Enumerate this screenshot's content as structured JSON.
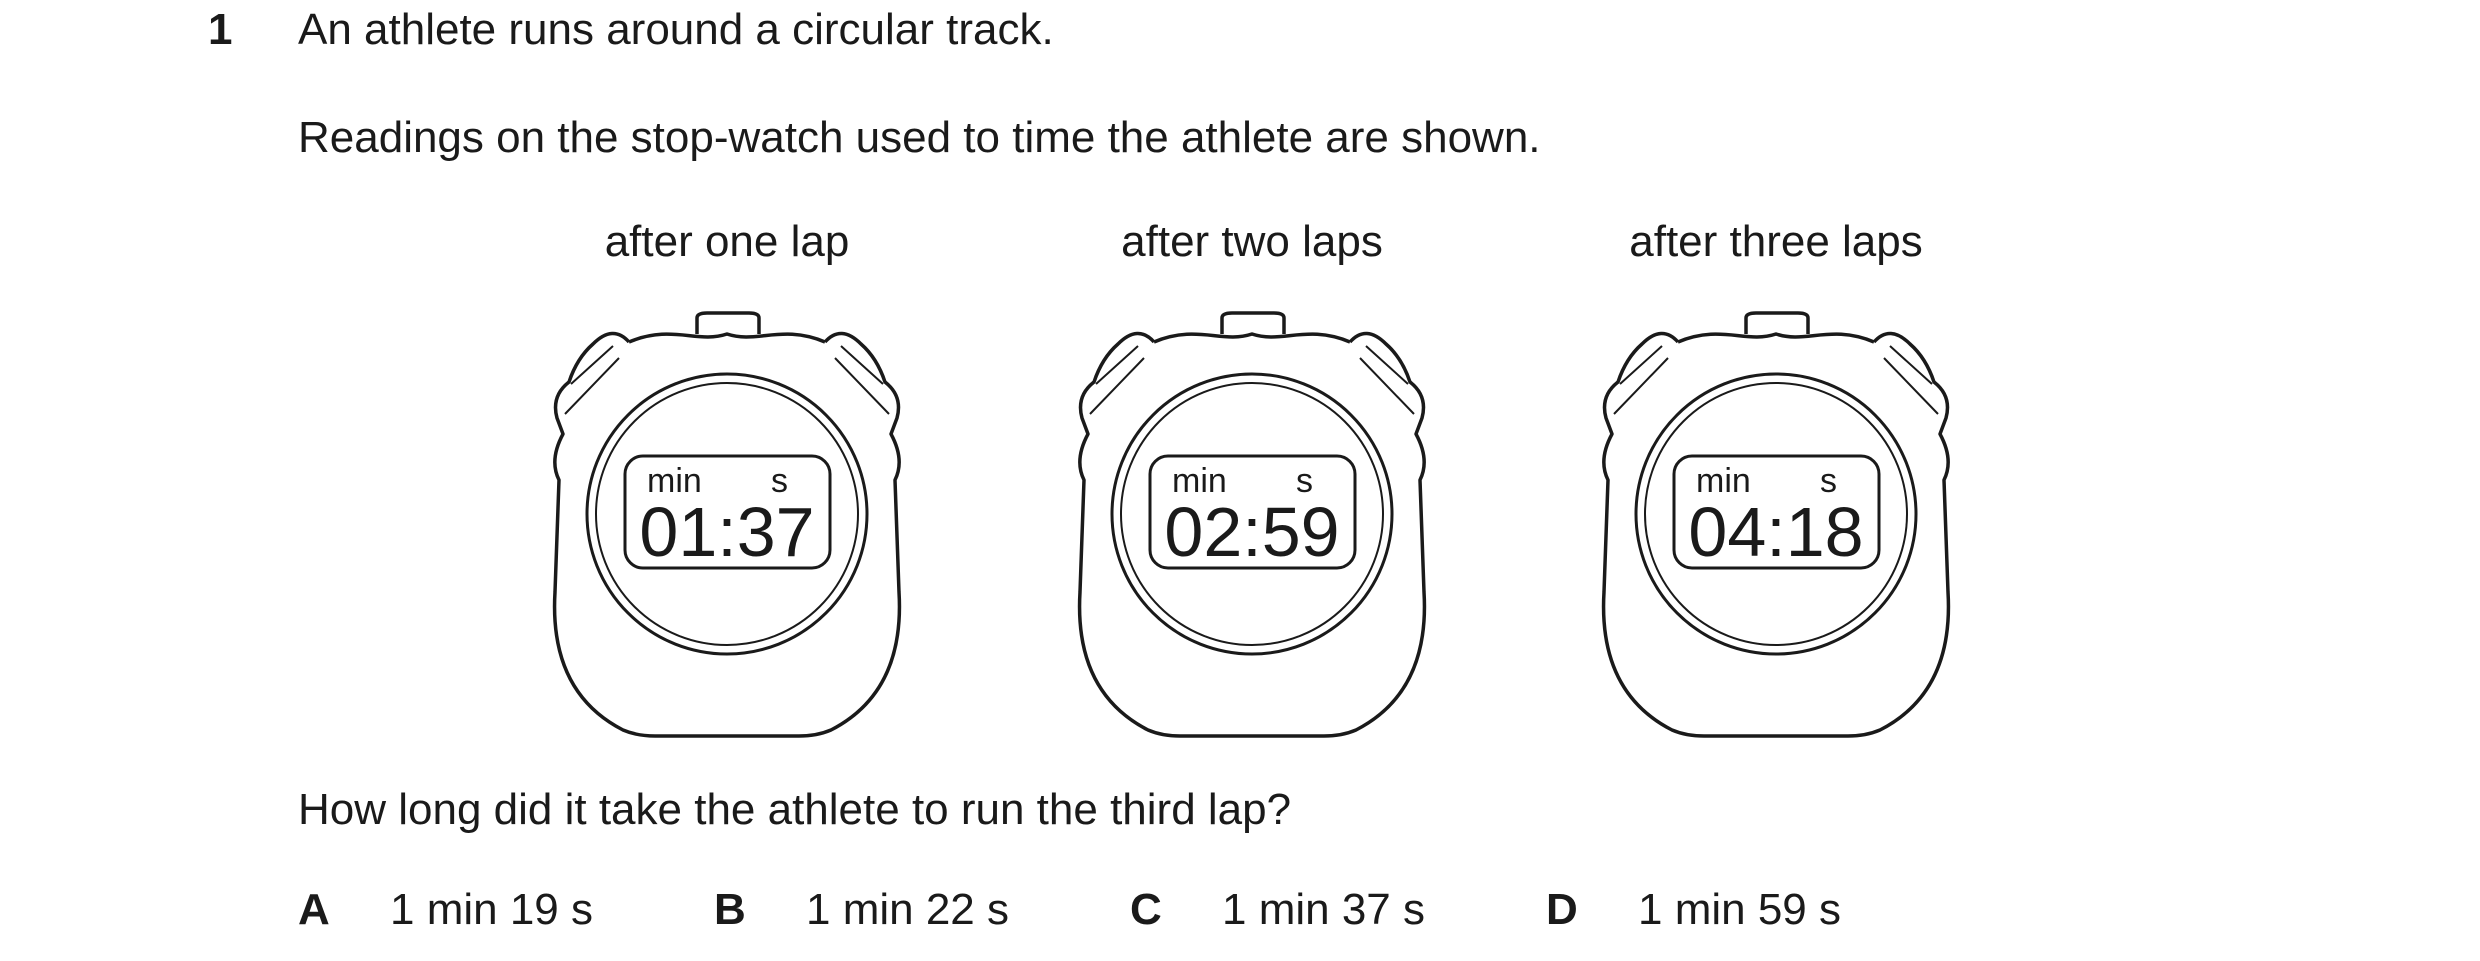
{
  "question": {
    "number": "1",
    "stem": "An athlete runs around a circular track.",
    "readings_text": "Readings on the stop-watch used to time the athlete are shown.",
    "prompt": "How long did it take the athlete to run the third lap?"
  },
  "stopwatches": [
    {
      "caption": "after one lap",
      "unit_min": "min",
      "unit_s": "s",
      "time": "01:37"
    },
    {
      "caption": "after two laps",
      "unit_min": "min",
      "unit_s": "s",
      "time": "02:59"
    },
    {
      "caption": "after three laps",
      "unit_min": "min",
      "unit_s": "s",
      "time": "04:18"
    }
  ],
  "options": [
    {
      "letter": "A",
      "text": "1 min 19 s"
    },
    {
      "letter": "B",
      "text": "1 min 22 s"
    },
    {
      "letter": "C",
      "text": "1 min 37 s"
    },
    {
      "letter": "D",
      "text": "1 min 59 s"
    }
  ]
}
